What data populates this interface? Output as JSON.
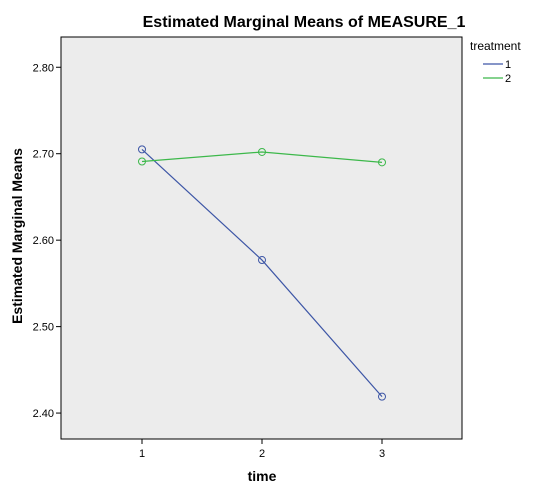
{
  "chart_data": {
    "type": "line",
    "title": "Estimated Marginal Means of MEASURE_1",
    "xlabel": "time",
    "ylabel": "Estimated Marginal Means",
    "categories": [
      "1",
      "2",
      "3"
    ],
    "ylim": [
      2.37,
      2.835
    ],
    "yticks": [
      2.4,
      2.5,
      2.6,
      2.7,
      2.8
    ],
    "ytick_labels": [
      "2.40",
      "2.50",
      "2.60",
      "2.70",
      "2.80"
    ],
    "grid": false,
    "legend": {
      "title": "treatment",
      "placement": "right"
    },
    "series": [
      {
        "name": "1",
        "color": "#3d56a6",
        "values": [
          2.705,
          2.577,
          2.419
        ]
      },
      {
        "name": "2",
        "color": "#3cb84a",
        "values": [
          2.691,
          2.702,
          2.69
        ]
      }
    ],
    "plot_background": "#ececec"
  }
}
